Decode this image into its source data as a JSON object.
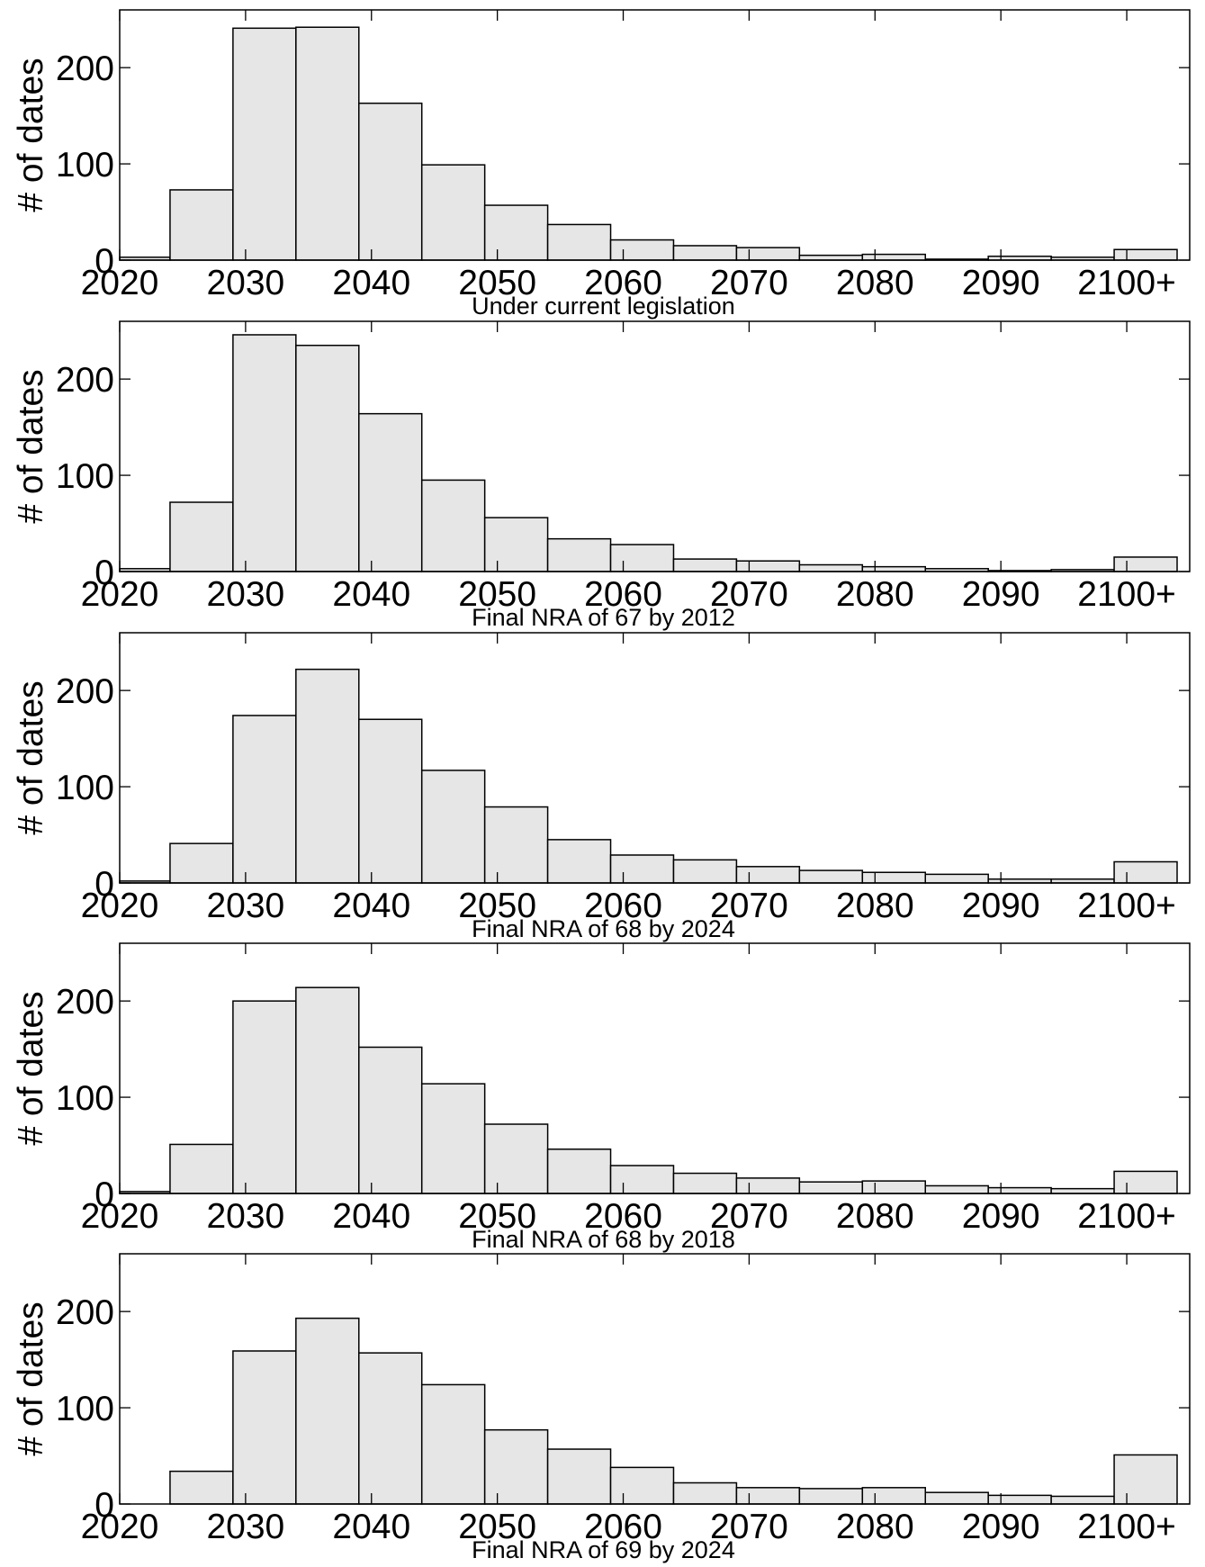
{
  "chart_data": [
    {
      "type": "bar",
      "title": "",
      "subtitle": "Under current legislation",
      "xlabel": "",
      "ylabel": "# of dates",
      "xlim": [
        2020,
        2105
      ],
      "ylim": [
        0,
        260
      ],
      "xticks": [
        2020,
        2030,
        2040,
        2050,
        2060,
        2070,
        2080,
        2090,
        2100
      ],
      "xtick_labels": [
        "2020",
        "2030",
        "2040",
        "2050",
        "2060",
        "2070",
        "2080",
        "2090",
        "2100+"
      ],
      "yticks": [
        0,
        100,
        200
      ],
      "ytick_labels": [
        "0",
        "100",
        "200"
      ],
      "bin_edges": [
        2020,
        2024,
        2029,
        2034,
        2039,
        2044,
        2049,
        2054,
        2059,
        2064,
        2069,
        2074,
        2079,
        2084,
        2089,
        2094,
        2099,
        2104
      ],
      "values": [
        3,
        73,
        241,
        242,
        163,
        99,
        57,
        37,
        21,
        15,
        13,
        5,
        6,
        1,
        4,
        3,
        11
      ],
      "grid": false
    },
    {
      "type": "bar",
      "title": "",
      "subtitle": "Final NRA of 67 by 2012",
      "xlabel": "",
      "ylabel": "# of dates",
      "xlim": [
        2020,
        2105
      ],
      "ylim": [
        0,
        260
      ],
      "xticks": [
        2020,
        2030,
        2040,
        2050,
        2060,
        2070,
        2080,
        2090,
        2100
      ],
      "xtick_labels": [
        "2020",
        "2030",
        "2040",
        "2050",
        "2060",
        "2070",
        "2080",
        "2090",
        "2100+"
      ],
      "yticks": [
        0,
        100,
        200
      ],
      "ytick_labels": [
        "0",
        "100",
        "200"
      ],
      "bin_edges": [
        2020,
        2024,
        2029,
        2034,
        2039,
        2044,
        2049,
        2054,
        2059,
        2064,
        2069,
        2074,
        2079,
        2084,
        2089,
        2094,
        2099,
        2104
      ],
      "values": [
        3,
        72,
        246,
        235,
        164,
        95,
        56,
        34,
        28,
        13,
        11,
        7,
        5,
        3,
        1,
        2,
        15
      ],
      "grid": false
    },
    {
      "type": "bar",
      "title": "",
      "subtitle": "Final NRA of 68 by 2024",
      "xlabel": "",
      "ylabel": "# of dates",
      "xlim": [
        2020,
        2105
      ],
      "ylim": [
        0,
        260
      ],
      "xticks": [
        2020,
        2030,
        2040,
        2050,
        2060,
        2070,
        2080,
        2090,
        2100
      ],
      "xtick_labels": [
        "2020",
        "2030",
        "2040",
        "2050",
        "2060",
        "2070",
        "2080",
        "2090",
        "2100+"
      ],
      "yticks": [
        0,
        100,
        200
      ],
      "ytick_labels": [
        "0",
        "100",
        "200"
      ],
      "bin_edges": [
        2020,
        2024,
        2029,
        2034,
        2039,
        2044,
        2049,
        2054,
        2059,
        2064,
        2069,
        2074,
        2079,
        2084,
        2089,
        2094,
        2099,
        2104
      ],
      "values": [
        2,
        41,
        174,
        222,
        170,
        117,
        79,
        45,
        29,
        24,
        17,
        13,
        11,
        9,
        4,
        4,
        22
      ],
      "grid": false
    },
    {
      "type": "bar",
      "title": "",
      "subtitle": "Final NRA of 68 by 2018",
      "xlabel": "",
      "ylabel": "# of dates",
      "xlim": [
        2020,
        2105
      ],
      "ylim": [
        0,
        260
      ],
      "xticks": [
        2020,
        2030,
        2040,
        2050,
        2060,
        2070,
        2080,
        2090,
        2100
      ],
      "xtick_labels": [
        "2020",
        "2030",
        "2040",
        "2050",
        "2060",
        "2070",
        "2080",
        "2090",
        "2100+"
      ],
      "yticks": [
        0,
        100,
        200
      ],
      "ytick_labels": [
        "0",
        "100",
        "200"
      ],
      "bin_edges": [
        2020,
        2024,
        2029,
        2034,
        2039,
        2044,
        2049,
        2054,
        2059,
        2064,
        2069,
        2074,
        2079,
        2084,
        2089,
        2094,
        2099,
        2104
      ],
      "values": [
        2,
        51,
        200,
        214,
        152,
        114,
        72,
        46,
        29,
        21,
        16,
        12,
        13,
        8,
        6,
        5,
        23
      ],
      "grid": false
    },
    {
      "type": "bar",
      "title": "",
      "subtitle": "Final NRA of 69 by 2024",
      "xlabel": "",
      "ylabel": "# of dates",
      "xlim": [
        2020,
        2105
      ],
      "ylim": [
        0,
        260
      ],
      "xticks": [
        2020,
        2030,
        2040,
        2050,
        2060,
        2070,
        2080,
        2090,
        2100
      ],
      "xtick_labels": [
        "2020",
        "2030",
        "2040",
        "2050",
        "2060",
        "2070",
        "2080",
        "2090",
        "2100+"
      ],
      "yticks": [
        0,
        100,
        200
      ],
      "ytick_labels": [
        "0",
        "100",
        "200"
      ],
      "bin_edges": [
        2020,
        2024,
        2029,
        2034,
        2039,
        2044,
        2049,
        2054,
        2059,
        2064,
        2069,
        2074,
        2079,
        2084,
        2089,
        2094,
        2099,
        2104
      ],
      "values": [
        0,
        34,
        159,
        193,
        157,
        124,
        77,
        57,
        38,
        22,
        17,
        16,
        17,
        12,
        9,
        8,
        51
      ],
      "grid": false
    }
  ]
}
